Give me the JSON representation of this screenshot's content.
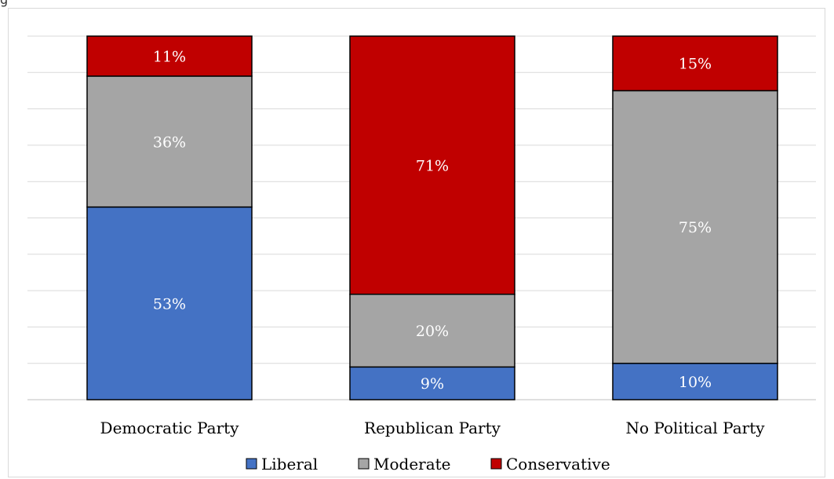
{
  "header_fragment": "g",
  "chart_data": {
    "type": "bar",
    "stacked": true,
    "categories": [
      "Democratic Party",
      "Republican Party",
      "No Political Party"
    ],
    "series": [
      {
        "name": "Liberal",
        "values": [
          53,
          9,
          10
        ],
        "labels": [
          "53%",
          "9%",
          "10%"
        ],
        "color": "#4472c4"
      },
      {
        "name": "Moderate",
        "values": [
          36,
          20,
          75
        ],
        "labels": [
          "36%",
          "20%",
          "75%"
        ],
        "color": "#a5a5a5"
      },
      {
        "name": "Conservative",
        "values": [
          11,
          71,
          15
        ],
        "labels": [
          "11%",
          "71%",
          "15%"
        ],
        "color": "#c00000"
      }
    ],
    "ylim": [
      0,
      100
    ],
    "grid": true,
    "legend_position": "bottom",
    "title": "",
    "xlabel": "",
    "ylabel": ""
  }
}
